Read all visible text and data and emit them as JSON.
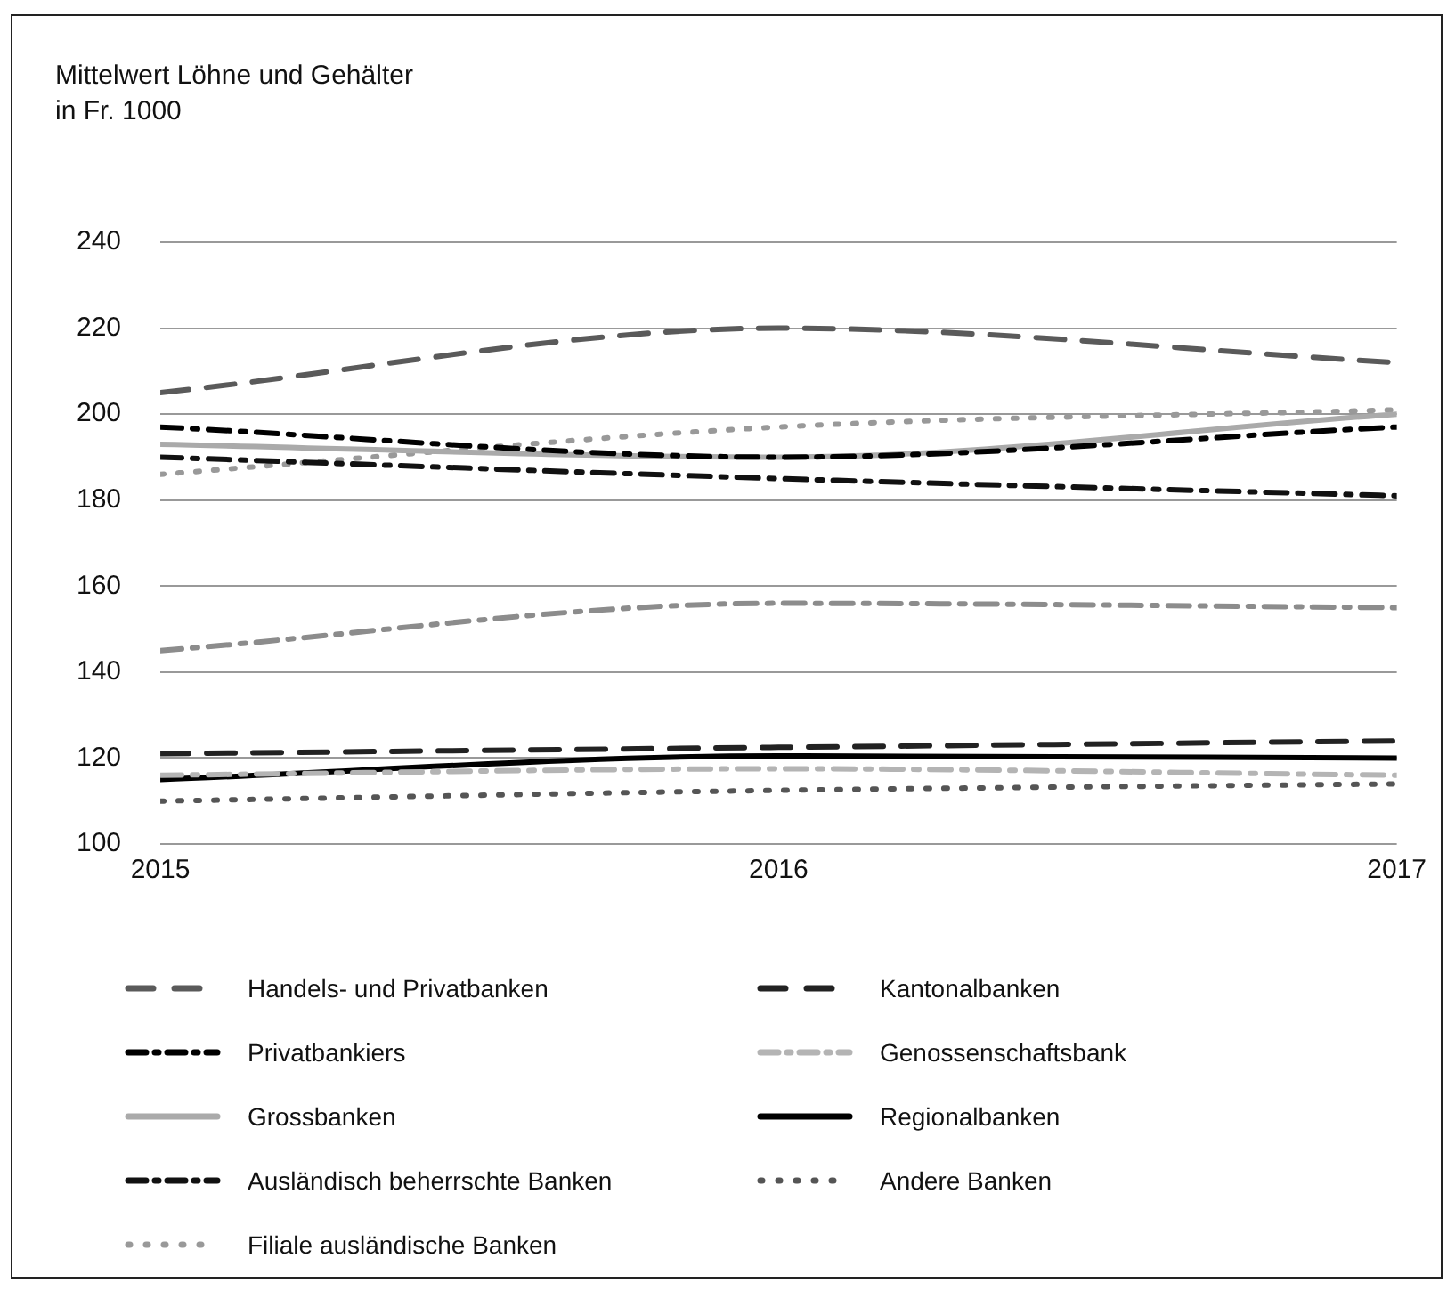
{
  "chart_data": {
    "type": "line",
    "title": "Mittelwert Löhne und Gehälter",
    "subtitle": "in Fr. 1000",
    "x": [
      2015,
      2016,
      2017
    ],
    "xlim": [
      2015,
      2017
    ],
    "xticks": [
      2015,
      2016,
      2017
    ],
    "ylim": [
      100,
      240
    ],
    "yticks": [
      100,
      120,
      140,
      160,
      180,
      200,
      220,
      240
    ],
    "grid": "y",
    "legend": "bottom",
    "marker": "none",
    "series": [
      {
        "name": "Handels- und Privatbanken",
        "color": "#5a5a5a",
        "line_style": "dashed",
        "values": [
          205,
          220,
          212
        ]
      },
      {
        "name": "Privatbankiers",
        "color": "#000000",
        "line_style": "dashdot",
        "values": [
          197,
          190,
          197
        ]
      },
      {
        "name": "Grossbanken",
        "color": "#aaaaaa",
        "line_style": "solid",
        "values": [
          193,
          190,
          200
        ]
      },
      {
        "name": "Ausländisch beherrschte Banken",
        "color": "#111111",
        "line_style": "dashdot",
        "values": [
          190,
          185,
          181
        ]
      },
      {
        "name": "Filiale ausländische Banken",
        "color": "#999999",
        "line_style": "dotted",
        "values": [
          186,
          197,
          201
        ]
      },
      {
        "color": "#8c8c8c",
        "line_style": "dashdot",
        "values": [
          145,
          156,
          155
        ]
      },
      {
        "name": "Kantonalbanken",
        "color": "#222222",
        "line_style": "dashed",
        "values": [
          121,
          122.5,
          124
        ]
      },
      {
        "name": "Genossenschaftsbank",
        "color": "#b4b4b4",
        "line_style": "dashdot",
        "values": [
          116,
          117.5,
          116
        ]
      },
      {
        "name": "Regionalbanken",
        "color": "#000000",
        "line_style": "solid",
        "values": [
          115,
          120.5,
          120
        ]
      },
      {
        "name": "Andere Banken",
        "color": "#555555",
        "line_style": "dotted",
        "values": [
          110,
          112.5,
          114
        ]
      }
    ]
  }
}
